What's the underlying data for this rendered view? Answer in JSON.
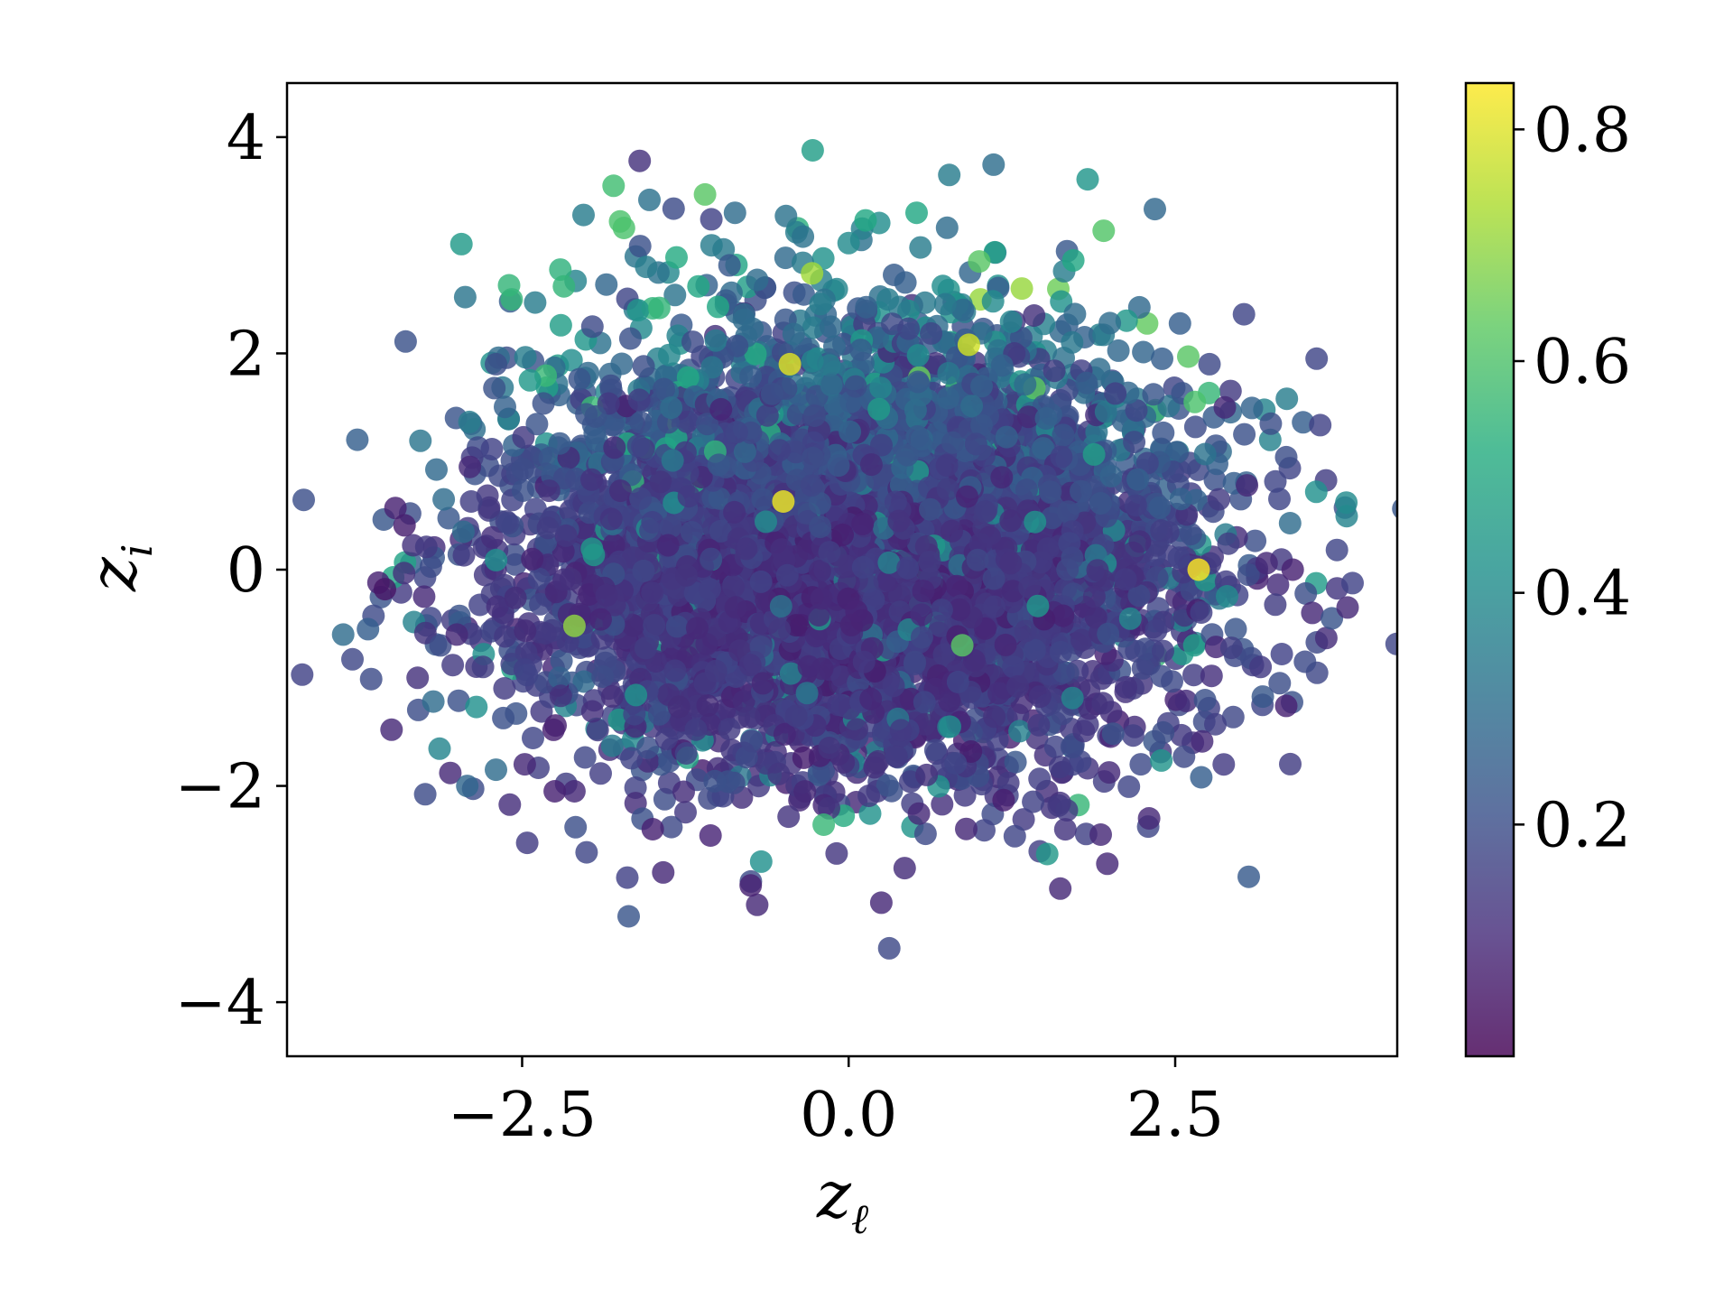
{
  "chart_data": {
    "type": "scatter",
    "xlabel": {
      "main": "z",
      "sub": "ℓ"
    },
    "ylabel": {
      "main": "z",
      "sub": "i"
    },
    "xlim": [
      -4.3,
      4.2
    ],
    "ylim": [
      -4.5,
      4.5
    ],
    "x_ticks": [
      -2.5,
      0.0,
      2.5
    ],
    "x_tick_labels": [
      "−2.5",
      "0.0",
      "2.5"
    ],
    "y_ticks": [
      -4,
      -2,
      0,
      2,
      4
    ],
    "y_tick_labels": [
      "−4",
      "−2",
      "0",
      "2",
      "4"
    ],
    "grid": false,
    "marker": {
      "alpha": 0.82,
      "radius_units": "medium"
    },
    "colormap": "viridis",
    "colorbar": {
      "range": [
        0.0,
        0.84
      ],
      "ticks": [
        0.2,
        0.4,
        0.6,
        0.8
      ],
      "tick_labels": [
        "0.2",
        "0.4",
        "0.6",
        "0.8"
      ]
    },
    "points": [
      [
        -3.87,
        -0.6,
        0.3
      ],
      [
        -3.68,
        -0.55,
        0.25
      ],
      [
        -3.6,
        -0.12,
        0.08
      ],
      [
        -3.55,
        -0.18,
        0.05
      ],
      [
        -3.5,
        -1.48,
        0.1
      ],
      [
        -3.47,
        0.57,
        0.08
      ],
      [
        -3.4,
        0.41,
        0.07
      ],
      [
        -3.3,
        -1.0,
        0.12
      ],
      [
        -3.18,
        -1.22,
        0.3
      ],
      [
        -3.05,
        -1.88,
        0.1
      ],
      [
        -2.92,
        -2.0,
        0.28
      ],
      [
        -2.85,
        -1.27,
        0.42
      ],
      [
        -2.7,
        -1.85,
        0.3
      ],
      [
        -2.68,
        1.96,
        0.3
      ],
      [
        -2.6,
        2.63,
        0.55
      ],
      [
        -2.58,
        2.5,
        0.55
      ],
      [
        -2.4,
        2.47,
        0.35
      ],
      [
        -2.18,
        2.62,
        0.55
      ],
      [
        -2.03,
        3.28,
        0.35
      ],
      [
        -1.8,
        3.55,
        0.58
      ],
      [
        -1.75,
        3.22,
        0.6
      ],
      [
        -1.72,
        3.16,
        0.6
      ],
      [
        -1.6,
        3.78,
        0.12
      ],
      [
        -1.55,
        2.8,
        0.35
      ],
      [
        -1.1,
        3.47,
        0.62
      ],
      [
        -1.05,
        3.0,
        0.35
      ],
      [
        -0.87,
        3.3,
        0.3
      ],
      [
        -0.7,
        2.68,
        0.3
      ],
      [
        -0.48,
        3.27,
        0.32
      ],
      [
        -0.4,
        3.12,
        0.35
      ],
      [
        -0.35,
        3.08,
        0.32
      ],
      [
        -0.28,
        2.74,
        0.72
      ],
      [
        0.0,
        3.02,
        0.4
      ],
      [
        0.13,
        3.23,
        0.5
      ],
      [
        0.52,
        3.3,
        0.5
      ],
      [
        0.55,
        2.98,
        0.35
      ],
      [
        0.77,
        3.65,
        0.35
      ],
      [
        1.0,
        2.85,
        0.62
      ],
      [
        1.65,
        2.76,
        0.35
      ],
      [
        1.72,
        2.86,
        0.5
      ],
      [
        0.92,
        2.08,
        0.78
      ],
      [
        -0.45,
        1.9,
        0.8
      ],
      [
        -0.5,
        0.63,
        0.82
      ],
      [
        2.68,
        0.0,
        0.84
      ],
      [
        -2.1,
        -0.52,
        0.7
      ],
      [
        0.87,
        -0.7,
        0.62
      ],
      [
        2.6,
        1.97,
        0.62
      ],
      [
        2.65,
        1.55,
        0.6
      ],
      [
        2.88,
        1.5,
        0.1
      ],
      [
        3.35,
        1.04,
        0.2
      ],
      [
        3.58,
        0.72,
        0.42
      ],
      [
        3.81,
        0.62,
        0.4
      ],
      [
        3.38,
        0.43,
        0.3
      ],
      [
        3.2,
        0.06,
        0.1
      ],
      [
        3.4,
        0.0,
        0.08
      ],
      [
        3.5,
        -0.22,
        0.2
      ],
      [
        3.55,
        -0.4,
        0.1
      ],
      [
        3.7,
        -0.45,
        0.22
      ],
      [
        3.82,
        -0.35,
        0.1
      ],
      [
        3.35,
        -1.26,
        0.08
      ],
      [
        2.7,
        -1.92,
        0.25
      ],
      [
        2.3,
        -2.3,
        0.1
      ],
      [
        1.93,
        -2.45,
        0.1
      ],
      [
        1.98,
        -2.72,
        0.1
      ],
      [
        1.62,
        -2.95,
        0.1
      ],
      [
        1.52,
        -2.63,
        0.45
      ],
      [
        0.25,
        -3.08,
        0.1
      ],
      [
        -0.7,
        -3.1,
        0.1
      ],
      [
        -0.75,
        -2.92,
        0.08
      ],
      [
        -0.67,
        -2.7,
        0.42
      ],
      [
        -1.42,
        -2.8,
        0.1
      ],
      [
        -1.5,
        -2.4,
        0.08
      ],
      [
        -2.1,
        -2.05,
        0.1
      ],
      [
        -2.25,
        -2.05,
        0.08
      ],
      [
        -2.48,
        -1.8,
        0.1
      ],
      [
        -2.7,
        1.9,
        0.2
      ],
      [
        2.4,
        1.95,
        0.25
      ],
      [
        2.0,
        2.28,
        0.3
      ],
      [
        1.42,
        2.35,
        0.12
      ],
      [
        0.3,
        2.5,
        0.35
      ],
      [
        -1.15,
        2.62,
        0.5
      ],
      [
        -1.45,
        2.42,
        0.55
      ],
      [
        -1.0,
        2.43,
        0.5
      ],
      [
        3.3,
        -1.05,
        0.2
      ],
      [
        -2.9,
        0.95,
        0.1
      ],
      [
        -3.1,
        0.65,
        0.3
      ],
      [
        -2.95,
        0.35,
        0.3
      ],
      [
        -3.25,
        -0.25,
        0.1
      ],
      [
        -3.0,
        -0.6,
        0.1
      ],
      [
        -2.8,
        -0.9,
        0.15
      ],
      [
        2.95,
        0.8,
        0.25
      ],
      [
        3.05,
        0.78,
        0.1
      ]
    ],
    "generated_cloud": {
      "count": 6400,
      "x_sigma": 1.22,
      "y_sigma": 0.95,
      "x_center": 0.02,
      "y_center": 0.18
    }
  }
}
